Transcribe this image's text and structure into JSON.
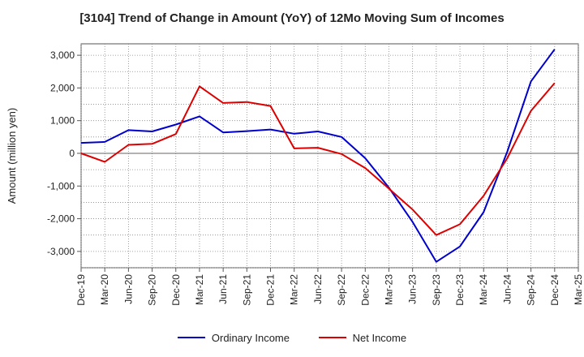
{
  "chart_data": {
    "type": "line",
    "title": "[3104]  Trend of Change in Amount (YoY) of 12Mo Moving Sum of Incomes",
    "xlabel": "",
    "ylabel": "Amount (million yen)",
    "ylim": [
      -3500,
      3350
    ],
    "yticks": [
      3000,
      2000,
      1000,
      0,
      -1000,
      -2000,
      -3000
    ],
    "ytick_labels": [
      "3,000",
      "2,000",
      "1,000",
      "0",
      "-1,000",
      "-2,000",
      "-3,000"
    ],
    "categories": [
      "Dec-19",
      "Mar-20",
      "Jun-20",
      "Sep-20",
      "Dec-20",
      "Mar-21",
      "Jun-21",
      "Sep-21",
      "Dec-21",
      "Mar-22",
      "Jun-22",
      "Sep-22",
      "Dec-22",
      "Mar-23",
      "Jun-23",
      "Sep-23",
      "Dec-23",
      "Mar-24",
      "Jun-24",
      "Sep-24",
      "Dec-24",
      "Mar-25"
    ],
    "series": [
      {
        "name": "Ordinary Income",
        "color": "#0000cc",
        "values": [
          320,
          350,
          710,
          670,
          880,
          1130,
          640,
          680,
          730,
          600,
          670,
          500,
          -150,
          -1050,
          -2100,
          -3320,
          -2850,
          -1800,
          50,
          2200,
          3180,
          null
        ]
      },
      {
        "name": "Net Income",
        "color": "#dd0000",
        "values": [
          0,
          -260,
          260,
          290,
          590,
          2050,
          1540,
          1570,
          1450,
          150,
          170,
          -20,
          -450,
          -1080,
          -1720,
          -2500,
          -2170,
          -1300,
          -150,
          1300,
          2150,
          null
        ]
      }
    ],
    "grid": true,
    "legend_position": "bottom-center"
  }
}
